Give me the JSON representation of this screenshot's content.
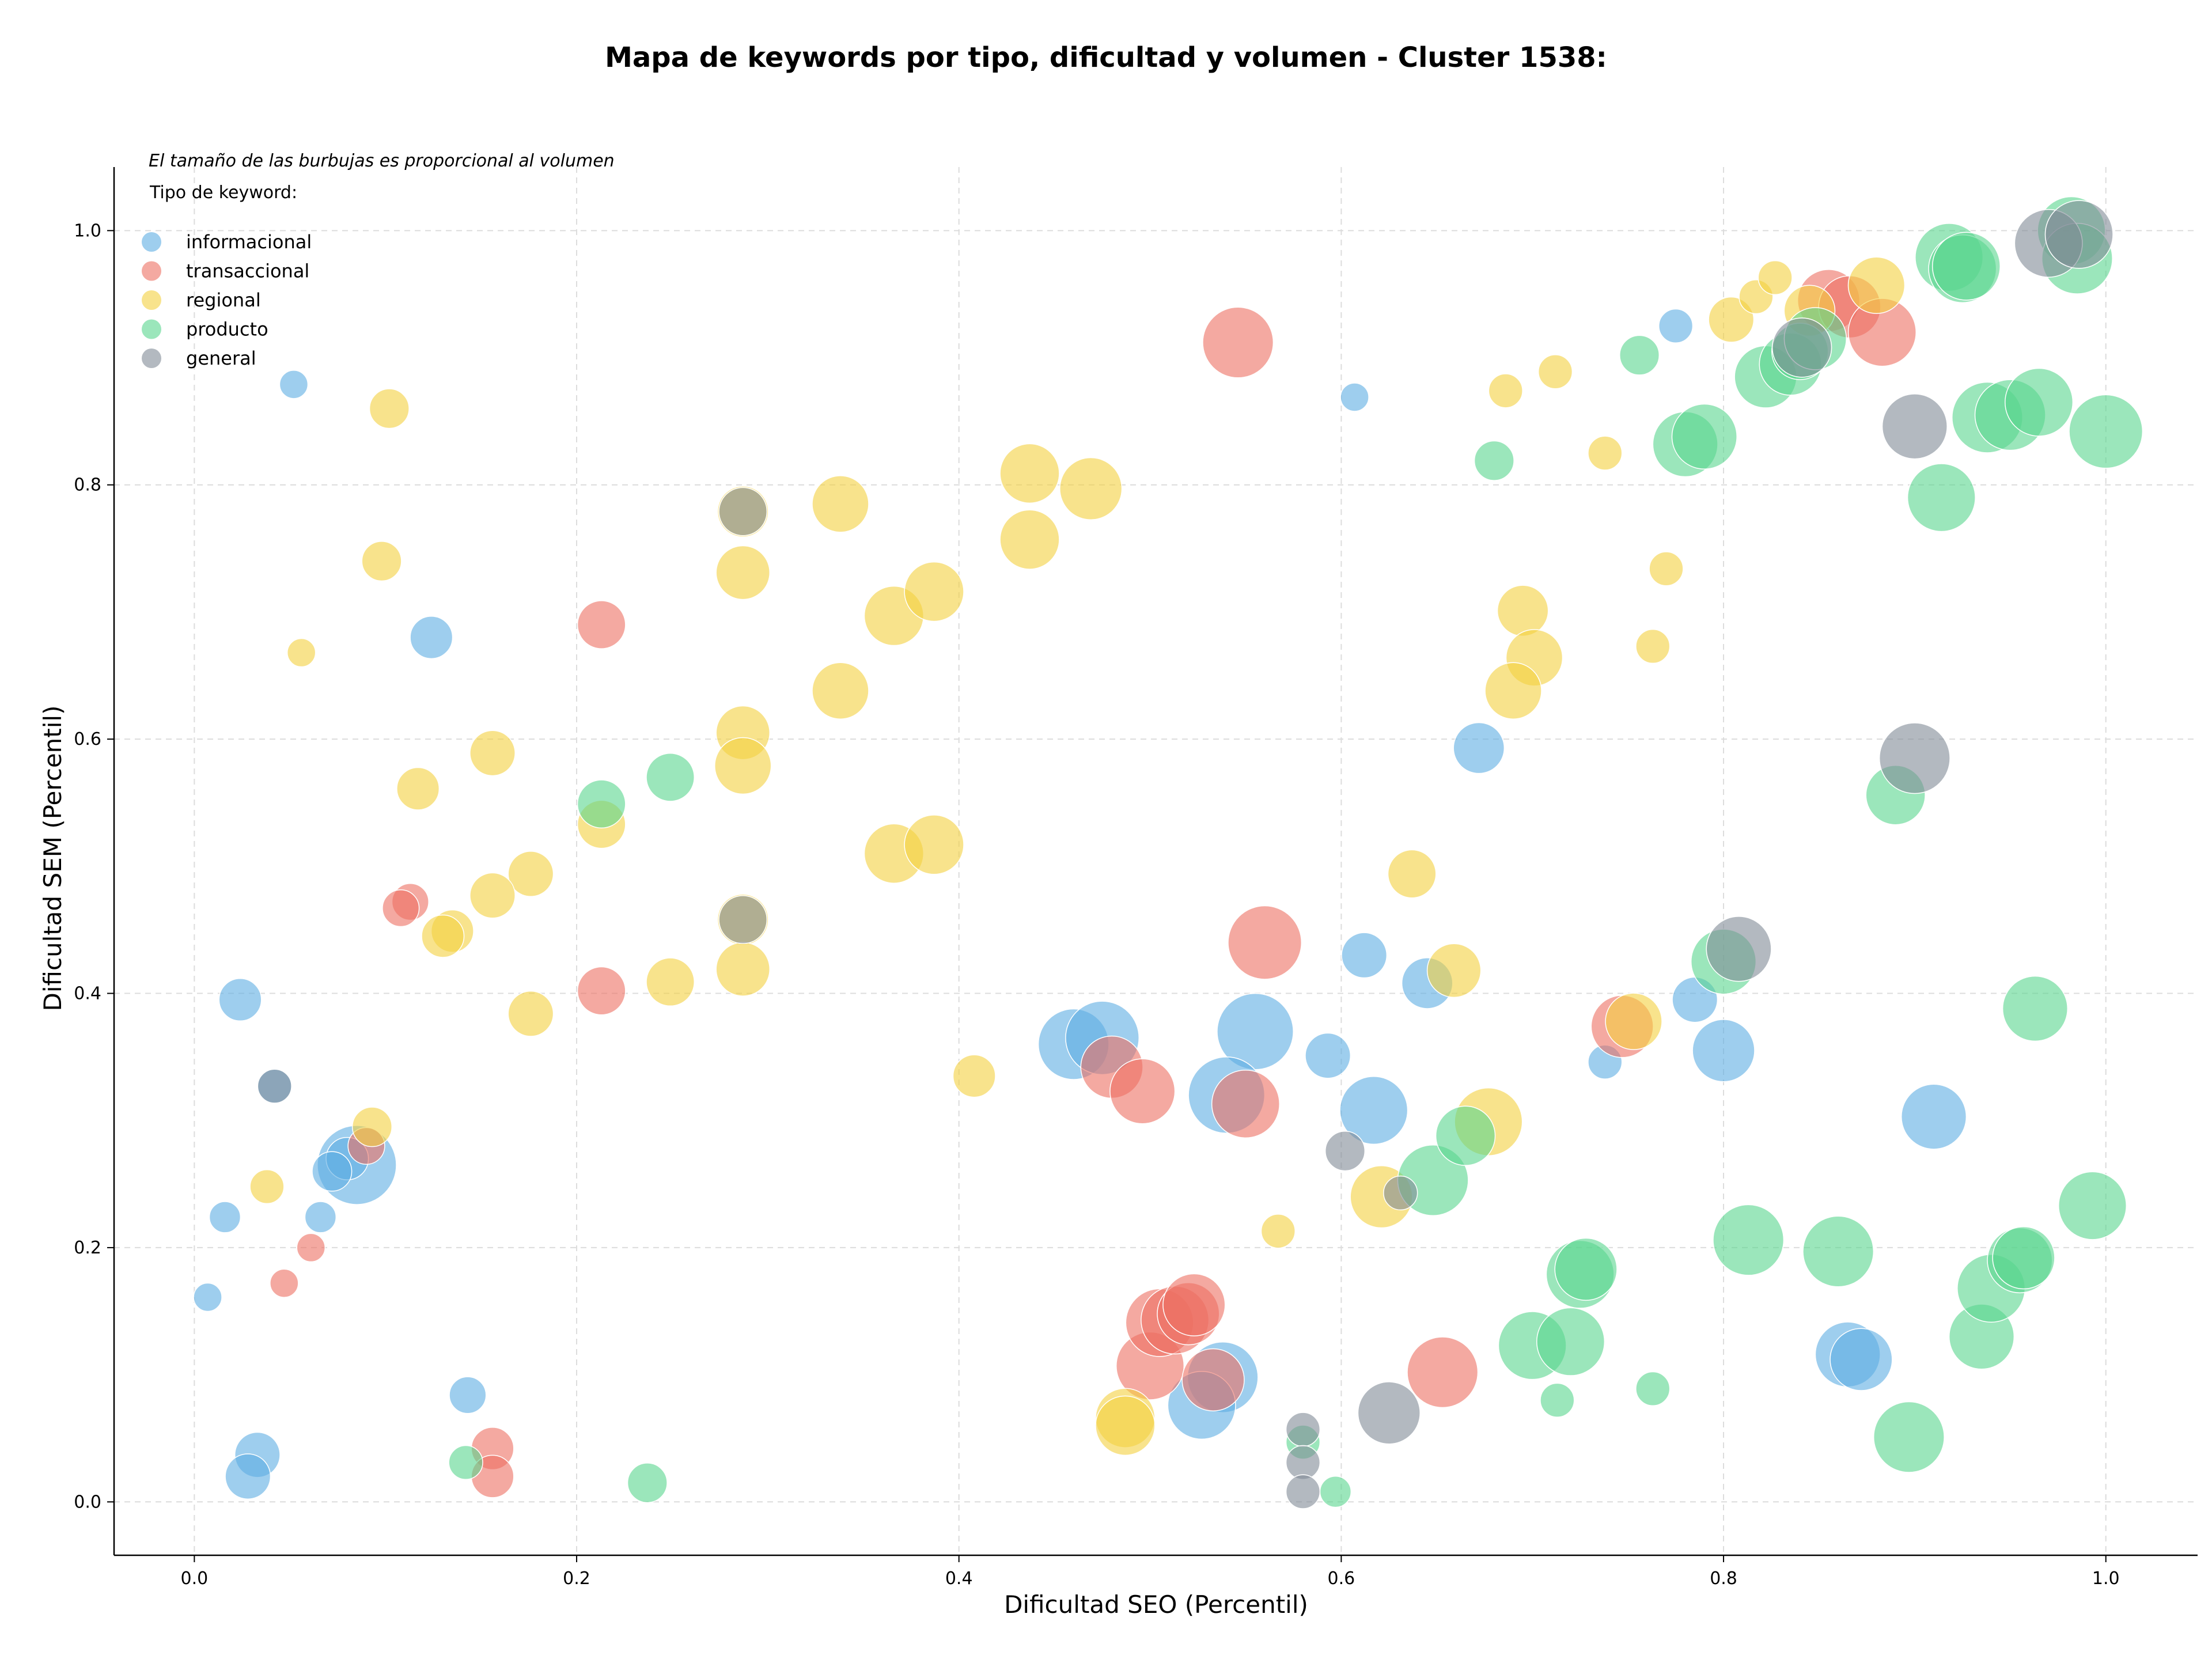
{
  "chart_data": {
    "type": "scatter",
    "title": "Mapa de keywords por tipo, dificultad y volumen - Cluster 1538:",
    "annotation": "El tamaño de las burbujas es proporcional al volumen",
    "xlabel": "Dificultad SEO (Percentil)",
    "ylabel": "Dificultad SEM (Percentil)",
    "xlim": [
      -0.042,
      1.048
    ],
    "ylim": [
      -0.042,
      1.05
    ],
    "xticks": [
      "0.0",
      "0.2",
      "0.4",
      "0.6",
      "0.8",
      "1.0"
    ],
    "yticks": [
      "0.0",
      "0.2",
      "0.4",
      "0.6",
      "0.8",
      "1.0"
    ],
    "grid": true,
    "legend": {
      "title": "Tipo de keyword:",
      "placement": "top-left"
    },
    "series": [
      {
        "name": "informacional",
        "color": "#5dade2",
        "points": [
          [
            0.052,
            0.879,
            10
          ],
          [
            0.124,
            0.68,
            15
          ],
          [
            0.024,
            0.395,
            15
          ],
          [
            0.042,
            0.327,
            12
          ],
          [
            0.085,
            0.265,
            28
          ],
          [
            0.08,
            0.27,
            15
          ],
          [
            0.072,
            0.26,
            14
          ],
          [
            0.066,
            0.224,
            11
          ],
          [
            0.016,
            0.224,
            11
          ],
          [
            0.007,
            0.161,
            10
          ],
          [
            0.143,
            0.084,
            13
          ],
          [
            0.033,
            0.037,
            16
          ],
          [
            0.028,
            0.02,
            16
          ],
          [
            0.46,
            0.36,
            25
          ],
          [
            0.475,
            0.365,
            26
          ],
          [
            0.555,
            0.37,
            27
          ],
          [
            0.54,
            0.32,
            27
          ],
          [
            0.593,
            0.351,
            16
          ],
          [
            0.612,
            0.43,
            16
          ],
          [
            0.645,
            0.408,
            18
          ],
          [
            0.617,
            0.308,
            24
          ],
          [
            0.672,
            0.593,
            18
          ],
          [
            0.607,
            0.869,
            10
          ],
          [
            0.775,
            0.925,
            12
          ],
          [
            0.785,
            0.395,
            16
          ],
          [
            0.8,
            0.355,
            22
          ],
          [
            0.91,
            0.303,
            23
          ],
          [
            0.865,
            0.116,
            23
          ],
          [
            0.872,
            0.112,
            22
          ],
          [
            0.538,
            0.098,
            25
          ],
          [
            0.527,
            0.076,
            24
          ],
          [
            0.738,
            0.346,
            12
          ]
        ]
      },
      {
        "name": "transaccional",
        "color": "#ec7063",
        "points": [
          [
            0.113,
            0.472,
            13
          ],
          [
            0.108,
            0.467,
            13
          ],
          [
            0.09,
            0.28,
            13
          ],
          [
            0.061,
            0.2,
            10
          ],
          [
            0.047,
            0.172,
            10
          ],
          [
            0.213,
            0.69,
            17
          ],
          [
            0.213,
            0.402,
            17
          ],
          [
            0.156,
            0.042,
            15
          ],
          [
            0.156,
            0.02,
            15
          ],
          [
            0.546,
            0.912,
            25
          ],
          [
            0.56,
            0.44,
            26
          ],
          [
            0.48,
            0.342,
            22
          ],
          [
            0.496,
            0.323,
            23
          ],
          [
            0.55,
            0.313,
            24
          ],
          [
            0.5,
            0.107,
            24
          ],
          [
            0.505,
            0.141,
            24
          ],
          [
            0.513,
            0.143,
            24
          ],
          [
            0.52,
            0.148,
            22
          ],
          [
            0.523,
            0.155,
            22
          ],
          [
            0.533,
            0.096,
            22
          ],
          [
            0.653,
            0.102,
            25
          ],
          [
            0.747,
            0.374,
            22
          ],
          [
            0.855,
            0.945,
            22
          ],
          [
            0.866,
            0.94,
            22
          ],
          [
            0.883,
            0.92,
            24
          ]
        ]
      },
      {
        "name": "regional",
        "color": "#f4d03f",
        "points": [
          [
            0.102,
            0.86,
            14
          ],
          [
            0.056,
            0.668,
            10
          ],
          [
            0.098,
            0.74,
            14
          ],
          [
            0.117,
            0.561,
            15
          ],
          [
            0.156,
            0.589,
            16
          ],
          [
            0.176,
            0.494,
            16
          ],
          [
            0.156,
            0.477,
            16
          ],
          [
            0.135,
            0.449,
            15
          ],
          [
            0.13,
            0.445,
            15
          ],
          [
            0.176,
            0.384,
            16
          ],
          [
            0.093,
            0.295,
            14
          ],
          [
            0.038,
            0.248,
            12
          ],
          [
            0.213,
            0.533,
            17
          ],
          [
            0.249,
            0.409,
            17
          ],
          [
            0.287,
            0.779,
            18
          ],
          [
            0.287,
            0.731,
            19
          ],
          [
            0.287,
            0.605,
            19
          ],
          [
            0.287,
            0.579,
            20
          ],
          [
            0.287,
            0.458,
            18
          ],
          [
            0.287,
            0.419,
            19
          ],
          [
            0.338,
            0.785,
            20
          ],
          [
            0.338,
            0.638,
            20
          ],
          [
            0.366,
            0.697,
            21
          ],
          [
            0.387,
            0.716,
            21
          ],
          [
            0.366,
            0.51,
            21
          ],
          [
            0.387,
            0.517,
            21
          ],
          [
            0.437,
            0.809,
            21
          ],
          [
            0.437,
            0.757,
            21
          ],
          [
            0.469,
            0.797,
            22
          ],
          [
            0.408,
            0.335,
            15
          ],
          [
            0.567,
            0.213,
            12
          ],
          [
            0.487,
            0.066,
            21
          ],
          [
            0.487,
            0.06,
            21
          ],
          [
            0.637,
            0.494,
            17
          ],
          [
            0.659,
            0.418,
            19
          ],
          [
            0.621,
            0.24,
            22
          ],
          [
            0.677,
            0.299,
            24
          ],
          [
            0.686,
            0.874,
            12
          ],
          [
            0.712,
            0.889,
            12
          ],
          [
            0.738,
            0.825,
            12
          ],
          [
            0.77,
            0.734,
            12
          ],
          [
            0.763,
            0.673,
            12
          ],
          [
            0.695,
            0.701,
            18
          ],
          [
            0.701,
            0.664,
            20
          ],
          [
            0.69,
            0.638,
            20
          ],
          [
            0.804,
            0.93,
            16
          ],
          [
            0.817,
            0.948,
            12
          ],
          [
            0.827,
            0.963,
            12
          ],
          [
            0.845,
            0.937,
            18
          ],
          [
            0.88,
            0.957,
            20
          ],
          [
            0.753,
            0.378,
            20
          ]
        ]
      },
      {
        "name": "producto",
        "color": "#58d68d",
        "points": [
          [
            0.213,
            0.549,
            17
          ],
          [
            0.249,
            0.57,
            17
          ],
          [
            0.142,
            0.031,
            12
          ],
          [
            0.237,
            0.015,
            14
          ],
          [
            0.58,
            0.047,
            12
          ],
          [
            0.597,
            0.008,
            11
          ],
          [
            0.648,
            0.253,
            25
          ],
          [
            0.665,
            0.288,
            21
          ],
          [
            0.68,
            0.819,
            14
          ],
          [
            0.713,
            0.08,
            12
          ],
          [
            0.763,
            0.089,
            12
          ],
          [
            0.7,
            0.123,
            24
          ],
          [
            0.72,
            0.126,
            24
          ],
          [
            0.725,
            0.179,
            24
          ],
          [
            0.728,
            0.183,
            22
          ],
          [
            0.756,
            0.902,
            14
          ],
          [
            0.78,
            0.832,
            23
          ],
          [
            0.79,
            0.838,
            23
          ],
          [
            0.8,
            0.425,
            23
          ],
          [
            0.813,
            0.206,
            25
          ],
          [
            0.822,
            0.885,
            22
          ],
          [
            0.835,
            0.895,
            22
          ],
          [
            0.84,
            0.905,
            20
          ],
          [
            0.848,
            0.915,
            22
          ],
          [
            0.86,
            0.197,
            25
          ],
          [
            0.89,
            0.556,
            21
          ],
          [
            0.897,
            0.051,
            25
          ],
          [
            0.914,
            0.79,
            24
          ],
          [
            0.918,
            0.979,
            24
          ],
          [
            0.925,
            0.97,
            24
          ],
          [
            0.927,
            0.972,
            24
          ],
          [
            0.938,
            0.853,
            25
          ],
          [
            0.95,
            0.855,
            25
          ],
          [
            0.965,
            0.865,
            24
          ],
          [
            0.963,
            0.388,
            23
          ],
          [
            0.935,
            0.13,
            23
          ],
          [
            0.94,
            0.168,
            24
          ],
          [
            0.955,
            0.19,
            23
          ],
          [
            0.957,
            0.192,
            22
          ],
          [
            0.982,
            1.0,
            24
          ],
          [
            0.985,
            0.978,
            25
          ],
          [
            0.993,
            0.233,
            24
          ],
          [
            1.0,
            0.842,
            26
          ]
        ]
      },
      {
        "name": "general",
        "color": "#808b96",
        "points": [
          [
            0.042,
            0.327,
            12
          ],
          [
            0.287,
            0.779,
            17
          ],
          [
            0.287,
            0.458,
            17
          ],
          [
            0.602,
            0.276,
            14
          ],
          [
            0.631,
            0.243,
            12
          ],
          [
            0.58,
            0.057,
            12
          ],
          [
            0.58,
            0.031,
            12
          ],
          [
            0.58,
            0.008,
            12
          ],
          [
            0.625,
            0.07,
            22
          ],
          [
            0.808,
            0.435,
            23
          ],
          [
            0.841,
            0.908,
            21
          ],
          [
            0.9,
            0.846,
            23
          ],
          [
            0.9,
            0.585,
            25
          ],
          [
            0.97,
            0.99,
            24
          ],
          [
            0.986,
            0.997,
            24
          ]
        ]
      }
    ]
  }
}
